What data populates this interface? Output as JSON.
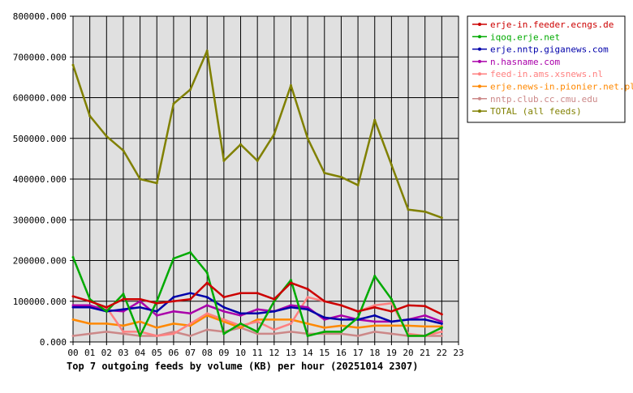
{
  "chart_data": {
    "type": "line",
    "title": "Top 7 outgoing feeds by volume (KB) per hour (20251014 2307)",
    "xlabel": "",
    "ylabel": "",
    "ylim": [
      0,
      800000
    ],
    "xlim": [
      0,
      23
    ],
    "y_tick_labels": [
      "0.000",
      "100000.000",
      "200000.000",
      "300000.000",
      "400000.000",
      "500000.000",
      "600000.000",
      "700000.000",
      "800000.000"
    ],
    "x_tick_labels": [
      "00",
      "01",
      "02",
      "03",
      "04",
      "05",
      "06",
      "07",
      "08",
      "09",
      "10",
      "11",
      "12",
      "13",
      "14",
      "15",
      "16",
      "17",
      "18",
      "19",
      "20",
      "21",
      "22",
      "23"
    ],
    "grid": true,
    "legend_position": "top-right",
    "series": [
      {
        "name": "erje-in.feeder.ecngs.de",
        "color": "#cc0000",
        "values": [
          112000,
          100000,
          85000,
          105000,
          105000,
          95000,
          100000,
          105000,
          145000,
          110000,
          120000,
          120000,
          105000,
          145000,
          130000,
          100000,
          90000,
          75000,
          85000,
          75000,
          90000,
          88000,
          68000
        ]
      },
      {
        "name": "iqoq.erje.net",
        "color": "#00aa00",
        "values": [
          208000,
          105000,
          75000,
          118000,
          15000,
          100000,
          205000,
          220000,
          170000,
          20000,
          45000,
          25000,
          100000,
          152000,
          15000,
          25000,
          25000,
          60000,
          162000,
          105000,
          15000,
          15000,
          35000
        ]
      },
      {
        "name": "erje.nntp.giganews.com",
        "color": "#0000aa",
        "values": [
          85000,
          85000,
          75000,
          80000,
          85000,
          75000,
          110000,
          120000,
          110000,
          85000,
          70000,
          70000,
          75000,
          85000,
          80000,
          60000,
          55000,
          55000,
          65000,
          50000,
          55000,
          55000,
          45000
        ]
      },
      {
        "name": "n.hasname.com",
        "color": "#aa00aa",
        "values": [
          90000,
          90000,
          78000,
          75000,
          100000,
          65000,
          75000,
          70000,
          90000,
          75000,
          65000,
          80000,
          75000,
          90000,
          85000,
          55000,
          65000,
          55000,
          50000,
          50000,
          55000,
          65000,
          50000
        ]
      },
      {
        "name": "feed-in.ams.xsnews.nl",
        "color": "#ff8080",
        "values": [
          85000,
          85000,
          85000,
          25000,
          25000,
          15000,
          20000,
          45000,
          70000,
          55000,
          40000,
          50000,
          30000,
          45000,
          110000,
          100000,
          90000,
          75000,
          90000,
          95000,
          20000,
          15000,
          25000
        ]
      },
      {
        "name": "erje.news-in.pionier.net.pl",
        "color": "#ff8800",
        "values": [
          55000,
          45000,
          45000,
          40000,
          50000,
          35000,
          45000,
          40000,
          65000,
          50000,
          35000,
          55000,
          55000,
          55000,
          45000,
          35000,
          40000,
          35000,
          40000,
          40000,
          40000,
          38000,
          38000
        ]
      },
      {
        "name": "nntp.club.cc.cmu.edu",
        "color": "#cc8888",
        "values": [
          15000,
          20000,
          25000,
          20000,
          15000,
          15000,
          25000,
          15000,
          30000,
          25000,
          35000,
          20000,
          20000,
          25000,
          20000,
          20000,
          20000,
          15000,
          25000,
          20000,
          15000,
          15000,
          15000
        ]
      },
      {
        "name": "TOTAL (all feeds)",
        "color": "#808000",
        "values": [
          680000,
          555000,
          505000,
          470000,
          400000,
          390000,
          585000,
          620000,
          715000,
          445000,
          485000,
          445000,
          510000,
          630000,
          500000,
          415000,
          405000,
          385000,
          545000,
          435000,
          325000,
          320000,
          305000
        ]
      }
    ]
  }
}
